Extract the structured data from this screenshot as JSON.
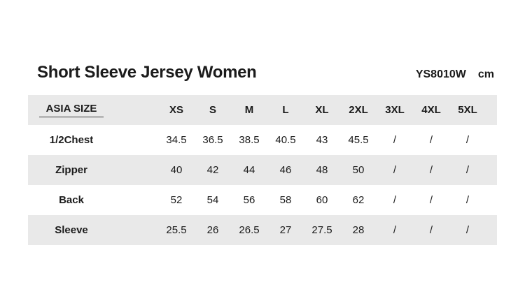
{
  "header": {
    "title": "Short Sleeve Jersey Women",
    "model_code": "YS8010W",
    "unit": "cm"
  },
  "colors": {
    "stripe_row": "#e9e9e9",
    "background": "#ffffff",
    "text": "#1b1b1b"
  },
  "chart_data": {
    "type": "table",
    "title": "Short Sleeve Jersey Women",
    "model": "YS8010W",
    "unit": "cm",
    "header_label": "ASIA SIZE",
    "columns": [
      "XS",
      "S",
      "M",
      "L",
      "XL",
      "2XL",
      "3XL",
      "4XL",
      "5XL"
    ],
    "rows": [
      {
        "label": "1/2Chest",
        "values": [
          "34.5",
          "36.5",
          "38.5",
          "40.5",
          "43",
          "45.5",
          "/",
          "/",
          "/"
        ]
      },
      {
        "label": "Zipper",
        "values": [
          "40",
          "42",
          "44",
          "46",
          "48",
          "50",
          "/",
          "/",
          "/"
        ]
      },
      {
        "label": "Back",
        "values": [
          "52",
          "54",
          "56",
          "58",
          "60",
          "62",
          "/",
          "/",
          "/"
        ]
      },
      {
        "label": "Sleeve",
        "values": [
          "25.5",
          "26",
          "26.5",
          "27",
          "27.5",
          "28",
          "/",
          "/",
          "/"
        ]
      }
    ],
    "layout": {
      "striped_rows": "header, Zipper, Sleeve",
      "grid": false,
      "unit_position": "top-right"
    }
  }
}
